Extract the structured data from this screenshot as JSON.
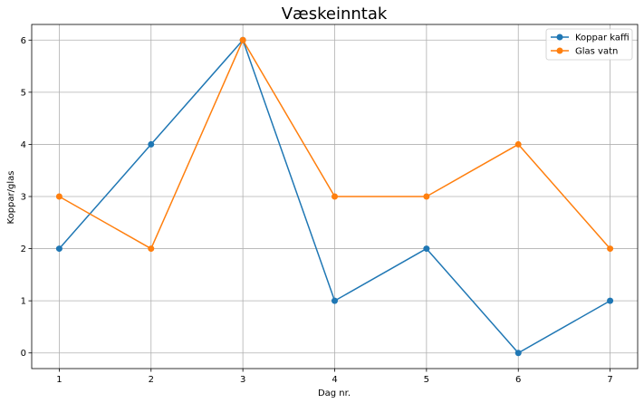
{
  "chart_data": {
    "type": "line",
    "title": "Væskeinntak",
    "xlabel": "Dag nr.",
    "ylabel": "Koppar/glas",
    "x": [
      1,
      2,
      3,
      4,
      5,
      6,
      7
    ],
    "xlim": [
      0.7,
      7.3
    ],
    "ylim": [
      -0.3,
      6.3
    ],
    "xticks": [
      "1",
      "2",
      "3",
      "4",
      "5",
      "6",
      "7"
    ],
    "yticks": [
      "0",
      "1",
      "2",
      "3",
      "4",
      "5",
      "6"
    ],
    "grid": true,
    "legend_position": "top-right",
    "series": [
      {
        "name": "Koppar kaffi",
        "color": "#1f77b4",
        "marker": "circle",
        "values": [
          2,
          4,
          6,
          1,
          2,
          0,
          1
        ]
      },
      {
        "name": "Glas vatn",
        "color": "#ff7f0e",
        "marker": "circle",
        "values": [
          3,
          2,
          6,
          3,
          3,
          4,
          2
        ]
      }
    ]
  }
}
